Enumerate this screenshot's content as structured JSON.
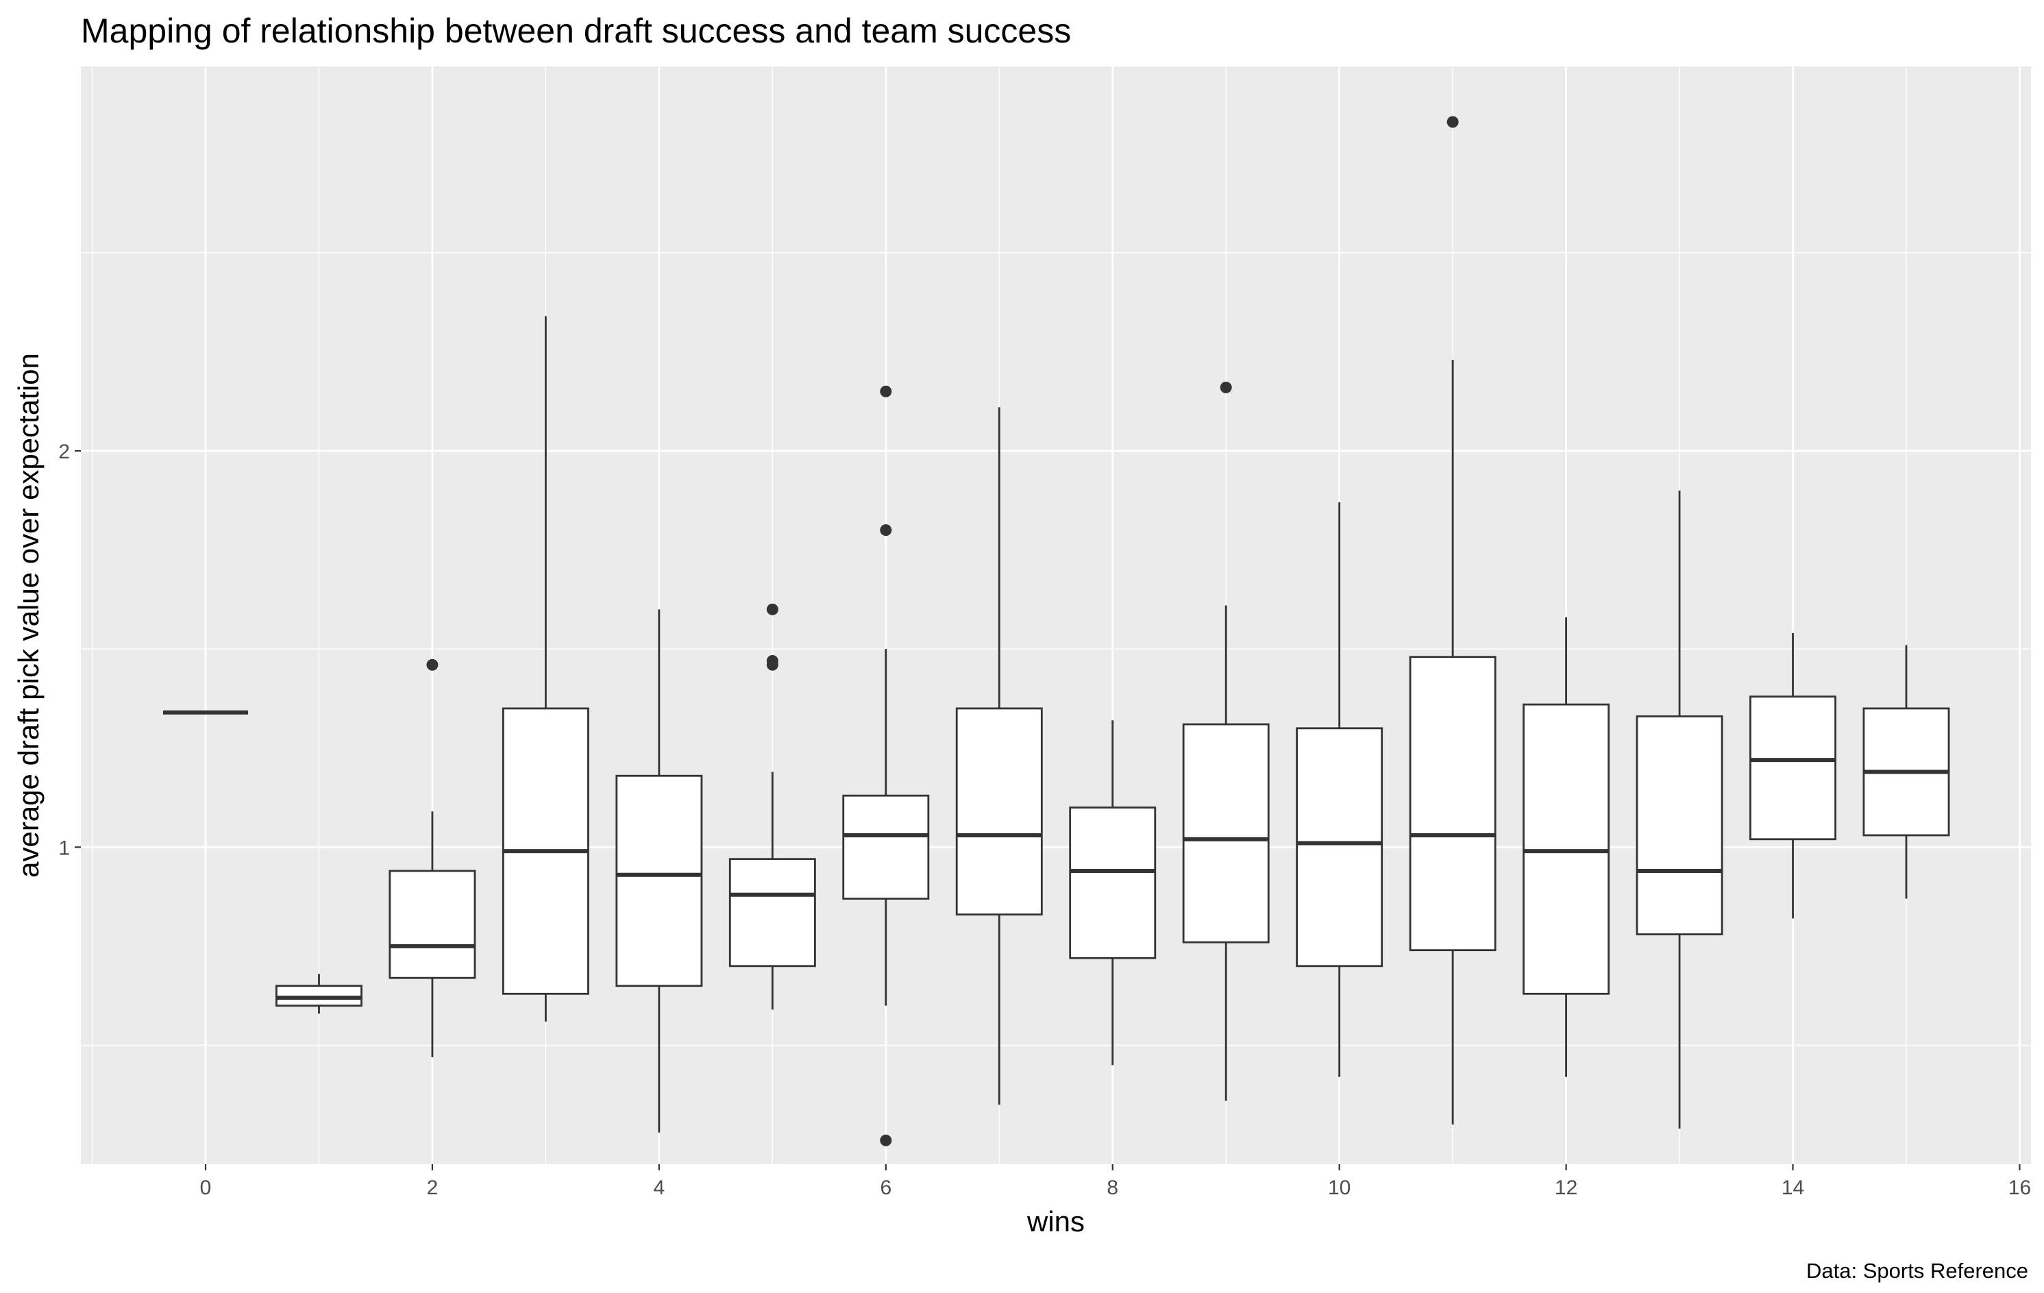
{
  "chart_data": {
    "type": "boxplot",
    "title": "Mapping of relationship between draft success and team success",
    "xlabel": "wins",
    "ylabel": "average draft pick value over expectation",
    "caption": "Data: Sports Reference",
    "xlim": [
      -1.1,
      16.1
    ],
    "ylim": [
      0.2,
      2.97
    ],
    "x_ticks": [
      0,
      2,
      4,
      6,
      8,
      10,
      12,
      14,
      16
    ],
    "y_ticks": [
      1,
      2
    ],
    "grid": true,
    "legend": "none",
    "colors": {
      "panel_bg": "#ebebeb",
      "grid": "#ffffff",
      "box_fill": "#ffffff",
      "box_line": "#333333",
      "outlier": "#333333",
      "tick_text": "#4d4d4d"
    },
    "boxes": [
      {
        "x": 0,
        "lower_whisker": 1.34,
        "q1": 1.34,
        "median": 1.34,
        "q3": 1.34,
        "upper_whisker": 1.34,
        "outliers": []
      },
      {
        "x": 1,
        "lower_whisker": 0.58,
        "q1": 0.6,
        "median": 0.62,
        "q3": 0.65,
        "upper_whisker": 0.68,
        "outliers": []
      },
      {
        "x": 2,
        "lower_whisker": 0.47,
        "q1": 0.67,
        "median": 0.75,
        "q3": 0.94,
        "upper_whisker": 1.09,
        "outliers": [
          1.46
        ]
      },
      {
        "x": 3,
        "lower_whisker": 0.56,
        "q1": 0.63,
        "median": 0.99,
        "q3": 1.35,
        "upper_whisker": 2.34,
        "outliers": []
      },
      {
        "x": 4,
        "lower_whisker": 0.28,
        "q1": 0.65,
        "median": 0.93,
        "q3": 1.18,
        "upper_whisker": 1.6,
        "outliers": []
      },
      {
        "x": 5,
        "lower_whisker": 0.59,
        "q1": 0.7,
        "median": 0.88,
        "q3": 0.97,
        "upper_whisker": 1.19,
        "outliers": [
          1.6,
          1.47,
          1.46
        ]
      },
      {
        "x": 6,
        "lower_whisker": 0.6,
        "q1": 0.87,
        "median": 1.03,
        "q3": 1.13,
        "upper_whisker": 1.5,
        "outliers": [
          2.15,
          1.8,
          0.26
        ]
      },
      {
        "x": 7,
        "lower_whisker": 0.35,
        "q1": 0.83,
        "median": 1.03,
        "q3": 1.35,
        "upper_whisker": 2.11,
        "outliers": []
      },
      {
        "x": 8,
        "lower_whisker": 0.45,
        "q1": 0.72,
        "median": 0.94,
        "q3": 1.1,
        "upper_whisker": 1.32,
        "outliers": []
      },
      {
        "x": 9,
        "lower_whisker": 0.36,
        "q1": 0.76,
        "median": 1.02,
        "q3": 1.31,
        "upper_whisker": 1.61,
        "outliers": [
          2.16
        ]
      },
      {
        "x": 10,
        "lower_whisker": 0.42,
        "q1": 0.7,
        "median": 1.01,
        "q3": 1.3,
        "upper_whisker": 1.87,
        "outliers": []
      },
      {
        "x": 11,
        "lower_whisker": 0.3,
        "q1": 0.74,
        "median": 1.03,
        "q3": 1.48,
        "upper_whisker": 2.23,
        "outliers": [
          2.83
        ]
      },
      {
        "x": 12,
        "lower_whisker": 0.42,
        "q1": 0.63,
        "median": 0.99,
        "q3": 1.36,
        "upper_whisker": 1.58,
        "outliers": []
      },
      {
        "x": 13,
        "lower_whisker": 0.29,
        "q1": 0.78,
        "median": 0.94,
        "q3": 1.33,
        "upper_whisker": 1.9,
        "outliers": []
      },
      {
        "x": 14,
        "lower_whisker": 0.82,
        "q1": 1.02,
        "median": 1.22,
        "q3": 1.38,
        "upper_whisker": 1.54,
        "outliers": []
      },
      {
        "x": 15,
        "lower_whisker": 0.87,
        "q1": 1.03,
        "median": 1.19,
        "q3": 1.35,
        "upper_whisker": 1.51,
        "outliers": []
      }
    ]
  }
}
